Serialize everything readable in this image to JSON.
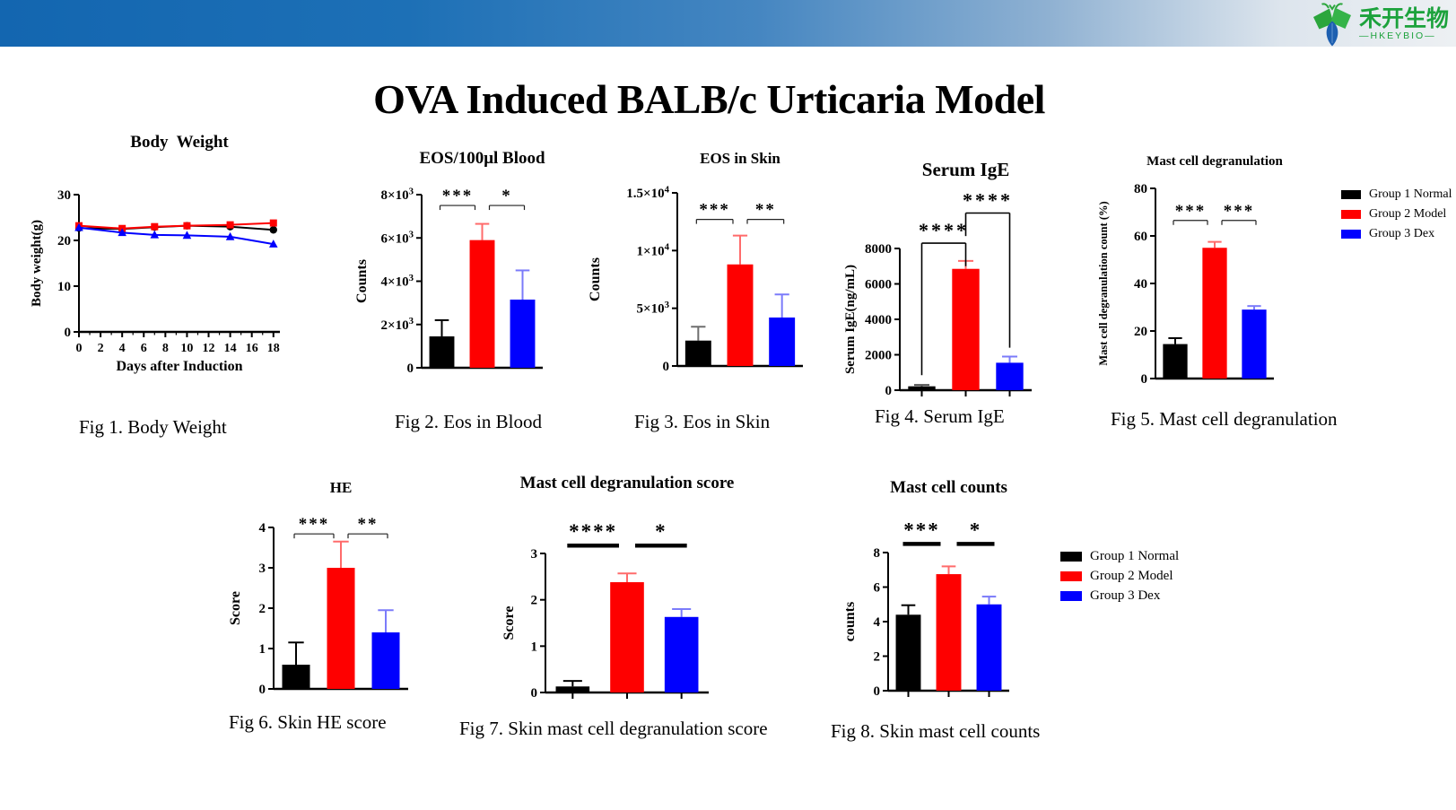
{
  "page": {
    "title": "OVA Induced BALB/c Urticaria Model"
  },
  "brand": {
    "name_cn": "禾开生物",
    "name_en": "—HKEYBIO—",
    "green": "#1ca23c",
    "blue": "#1d5fb0"
  },
  "groups": [
    {
      "label": "Group 1 Normal",
      "color": "#000000"
    },
    {
      "label": "Group 2 Model",
      "color": "#fe0000"
    },
    {
      "label": "Group 3 Dex",
      "color": "#0000fe"
    }
  ],
  "chart_data": [
    {
      "type": "line",
      "title": "Body  Weight",
      "xlabel": "Days after Induction",
      "ylabel": "Body weight(g)",
      "xlim": [
        0,
        18.6
      ],
      "ylim": [
        0,
        30
      ],
      "xticks": [
        0,
        2,
        4,
        6,
        8,
        10,
        12,
        14,
        16,
        18
      ],
      "xminor_step": 1,
      "yticks": [
        0,
        10,
        20,
        30
      ],
      "x": [
        0,
        4,
        7,
        10,
        14,
        18
      ],
      "series": [
        {
          "name": "Group 1 Normal",
          "color": "#000000",
          "marker": "circle",
          "values": [
            22.7,
            22.5,
            22.9,
            23.2,
            23.0,
            22.3
          ]
        },
        {
          "name": "Group 2 Model",
          "color": "#fe0000",
          "marker": "square",
          "values": [
            23.2,
            22.6,
            23.0,
            23.2,
            23.4,
            23.8
          ]
        },
        {
          "name": "Group 3 Dex",
          "color": "#0000fe",
          "marker": "triangle",
          "values": [
            22.8,
            21.7,
            21.2,
            21.1,
            20.8,
            19.2
          ]
        }
      ],
      "caption": "Fig 1. Body Weight"
    },
    {
      "type": "bar",
      "title": "EOS/100μl Blood",
      "ylabel": "Counts",
      "ylim": [
        0,
        8000
      ],
      "yticks": [
        0,
        2000,
        4000,
        6000,
        8000
      ],
      "ytick_labels": [
        "0",
        "2×10^3",
        "4×10^3",
        "6×10^3",
        "8×10^3"
      ],
      "categories": [
        "Group 1 Normal",
        "Group 2 Model",
        "Group 3 Dex"
      ],
      "values": [
        1450,
        5900,
        3150
      ],
      "errors": [
        750,
        750,
        1350
      ],
      "colors": [
        "#000000",
        "#fe0000",
        "#0000fe"
      ],
      "err_colors": [
        "#000000",
        "#ff6b6b",
        "#7b7bfa"
      ],
      "sig_style": "bracket",
      "significance": [
        {
          "pair": [
            0,
            1
          ],
          "label": "***",
          "y": 7500
        },
        {
          "pair": [
            1,
            2
          ],
          "label": "*",
          "y": 7500
        }
      ],
      "caption": "Fig 2. Eos in Blood"
    },
    {
      "type": "bar",
      "title": "EOS in Skin",
      "ylabel": "Counts",
      "ylim": [
        0,
        15000
      ],
      "yticks": [
        0,
        5000,
        10000,
        15000
      ],
      "ytick_labels": [
        "0",
        "5×10^3",
        "1×10^4",
        "1.5×10^4"
      ],
      "categories": [
        "Group 1 Normal",
        "Group 2 Model",
        "Group 3 Dex"
      ],
      "values": [
        2200,
        8800,
        4200
      ],
      "errors": [
        1200,
        2500,
        2000
      ],
      "colors": [
        "#000000",
        "#fe0000",
        "#0000fe"
      ],
      "err_colors": [
        "#6e6e6e",
        "#ff6b6b",
        "#7b7bfa"
      ],
      "sig_style": "bracket",
      "significance": [
        {
          "pair": [
            0,
            1
          ],
          "label": "***",
          "y": 12700
        },
        {
          "pair": [
            1,
            2
          ],
          "label": "**",
          "y": 12700
        }
      ],
      "caption": "Fig 3. Eos in Skin"
    },
    {
      "type": "bar",
      "title": "Serum IgE",
      "ylabel": "Serum IgE(ng/mL)",
      "ylim": [
        0,
        8000
      ],
      "yticks": [
        0,
        2000,
        4000,
        6000,
        8000
      ],
      "ytick_labels": [
        "0",
        "2000",
        "4000",
        "6000",
        "8000"
      ],
      "categories": [
        "Group 1 Normal",
        "Group 2 Model",
        "Group 3 Dex"
      ],
      "values": [
        220,
        6850,
        1550
      ],
      "errors": [
        80,
        450,
        350
      ],
      "colors": [
        "#000000",
        "#fe0000",
        "#0000fe"
      ],
      "err_colors": [
        "#555555",
        "#ff6b6b",
        "#7b7bfa"
      ],
      "sig_style": "frame",
      "xtick_marks": true,
      "significance": [
        {
          "pair": [
            0,
            1
          ],
          "label": "****",
          "y": 8300,
          "drop": [
            850,
            7000
          ]
        },
        {
          "pair": [
            1,
            2
          ],
          "label": "****",
          "y": 10000,
          "drop": [
            8700,
            2400
          ]
        }
      ],
      "caption": "Fig 4. Serum IgE"
    },
    {
      "type": "bar",
      "title": "Mast cell degranulation",
      "ylabel": "Mast cell degranulation count (%)",
      "ylim": [
        0,
        80
      ],
      "yticks": [
        0,
        20,
        40,
        60,
        80
      ],
      "ytick_labels": [
        "0",
        "20",
        "40",
        "60",
        "80"
      ],
      "categories": [
        "Group 1 Normal",
        "Group 2 Model",
        "Group 3 Dex"
      ],
      "values": [
        14.5,
        55,
        29
      ],
      "errors": [
        2.5,
        2.5,
        1.5
      ],
      "colors": [
        "#000000",
        "#fe0000",
        "#0000fe"
      ],
      "err_colors": [
        "#000000",
        "#ff6b6b",
        "#7b7bfa"
      ],
      "sig_style": "bracket",
      "significance": [
        {
          "pair": [
            0,
            1
          ],
          "label": "***",
          "y": 66.5
        },
        {
          "pair": [
            1,
            2
          ],
          "label": "***",
          "y": 66.5
        }
      ],
      "caption": "Fig 5. Mast cell degranulation"
    },
    {
      "type": "bar",
      "title": "HE",
      "ylabel": "Score",
      "ylim": [
        0,
        4
      ],
      "yticks": [
        0,
        1,
        2,
        3,
        4
      ],
      "ytick_labels": [
        "0",
        "1",
        "2",
        "3",
        "4"
      ],
      "categories": [
        "Group 1 Normal",
        "Group 2 Model",
        "Group 3 Dex"
      ],
      "values": [
        0.6,
        3.0,
        1.4
      ],
      "errors": [
        0.55,
        0.65,
        0.55
      ],
      "colors": [
        "#000000",
        "#fe0000",
        "#0000fe"
      ],
      "err_colors": [
        "#000000",
        "#ff6b6b",
        "#7b7bfa"
      ],
      "sig_style": "bracket",
      "significance": [
        {
          "pair": [
            0,
            1
          ],
          "label": "***",
          "y": 3.84
        },
        {
          "pair": [
            1,
            2
          ],
          "label": "**",
          "y": 3.84
        }
      ],
      "caption": "Fig 6. Skin HE score"
    },
    {
      "type": "bar",
      "title": "Mast cell degranulation score",
      "ylabel": "Score",
      "ylim": [
        0,
        3
      ],
      "yticks": [
        0,
        1,
        2,
        3
      ],
      "ytick_labels": [
        "0",
        "1",
        "2",
        "3"
      ],
      "categories": [
        "Group 1 Normal",
        "Group 2 Model",
        "Group 3 Dex"
      ],
      "values": [
        0.13,
        2.38,
        1.63
      ],
      "errors": [
        0.12,
        0.19,
        0.17
      ],
      "colors": [
        "#000000",
        "#fe0000",
        "#0000fe"
      ],
      "err_colors": [
        "#000000",
        "#ff6b6b",
        "#7b7bfa"
      ],
      "sig_style": "thick",
      "xtick_marks": true,
      "significance": [
        {
          "pair": [
            0,
            1
          ],
          "label": "****",
          "y": 3.17
        },
        {
          "pair": [
            1,
            2
          ],
          "label": "*",
          "y": 3.17
        }
      ],
      "caption": "Fig 7. Skin mast cell degranulation score"
    },
    {
      "type": "bar",
      "title": "Mast cell counts",
      "ylabel": "counts",
      "ylim": [
        0,
        8
      ],
      "yticks": [
        0,
        2,
        4,
        6,
        8
      ],
      "ytick_labels": [
        "0",
        "2",
        "4",
        "6",
        "8"
      ],
      "categories": [
        "Group 1 Normal",
        "Group 2 Model",
        "Group 3 Dex"
      ],
      "values": [
        4.4,
        6.75,
        5.0
      ],
      "errors": [
        0.55,
        0.45,
        0.45
      ],
      "colors": [
        "#000000",
        "#fe0000",
        "#0000fe"
      ],
      "err_colors": [
        "#000000",
        "#ff6b6b",
        "#7b7bfa"
      ],
      "sig_style": "thick",
      "xtick_marks": true,
      "significance": [
        {
          "pair": [
            0,
            1
          ],
          "label": "***",
          "y": 8.5
        },
        {
          "pair": [
            1,
            2
          ],
          "label": "*",
          "y": 8.5
        }
      ],
      "caption": "Fig 8. Skin mast cell counts"
    }
  ]
}
